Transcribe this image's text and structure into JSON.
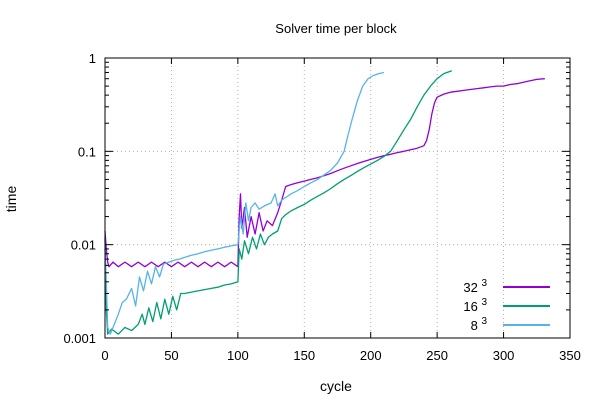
{
  "chart_data": {
    "type": "line",
    "title": "Solver time per block",
    "xlabel": "cycle",
    "ylabel": "time",
    "xlim": [
      0,
      350
    ],
    "ylim": [
      0.001,
      1
    ],
    "yscale": "log",
    "x_ticks": [
      0,
      50,
      100,
      150,
      200,
      250,
      300,
      350
    ],
    "y_ticks": [
      {
        "value": 0.001,
        "label": "0.001"
      },
      {
        "value": 0.01,
        "label": "0.01"
      },
      {
        "value": 0.1,
        "label": "0.1"
      },
      {
        "value": 1,
        "label": "1"
      }
    ],
    "grid": true,
    "legend_position": "bottom-right",
    "series": [
      {
        "name": "32",
        "name_sup": "3",
        "color": "#9400d3",
        "points": [
          [
            0,
            0.014
          ],
          [
            1,
            0.009
          ],
          [
            2,
            0.0065
          ],
          [
            3,
            0.0058
          ],
          [
            6,
            0.0065
          ],
          [
            10,
            0.0058
          ],
          [
            15,
            0.0065
          ],
          [
            20,
            0.0058
          ],
          [
            25,
            0.0065
          ],
          [
            30,
            0.0058
          ],
          [
            35,
            0.0065
          ],
          [
            40,
            0.0058
          ],
          [
            45,
            0.0065
          ],
          [
            50,
            0.0058
          ],
          [
            55,
            0.0065
          ],
          [
            60,
            0.0058
          ],
          [
            65,
            0.0065
          ],
          [
            70,
            0.0058
          ],
          [
            75,
            0.0065
          ],
          [
            80,
            0.0058
          ],
          [
            85,
            0.0065
          ],
          [
            90,
            0.0058
          ],
          [
            95,
            0.0065
          ],
          [
            100,
            0.0058
          ],
          [
            101,
            0.02
          ],
          [
            102,
            0.035
          ],
          [
            103,
            0.015
          ],
          [
            105,
            0.025
          ],
          [
            107,
            0.012
          ],
          [
            110,
            0.02
          ],
          [
            113,
            0.013
          ],
          [
            116,
            0.022
          ],
          [
            119,
            0.014
          ],
          [
            122,
            0.018
          ],
          [
            126,
            0.016
          ],
          [
            130,
            0.022
          ],
          [
            133,
            0.03
          ],
          [
            136,
            0.042
          ],
          [
            140,
            0.044
          ],
          [
            145,
            0.046
          ],
          [
            150,
            0.048
          ],
          [
            155,
            0.05
          ],
          [
            160,
            0.052
          ],
          [
            165,
            0.055
          ],
          [
            170,
            0.058
          ],
          [
            175,
            0.062
          ],
          [
            180,
            0.066
          ],
          [
            185,
            0.07
          ],
          [
            190,
            0.074
          ],
          [
            195,
            0.078
          ],
          [
            200,
            0.082
          ],
          [
            205,
            0.086
          ],
          [
            210,
            0.09
          ],
          [
            215,
            0.093
          ],
          [
            220,
            0.097
          ],
          [
            225,
            0.1
          ],
          [
            230,
            0.104
          ],
          [
            235,
            0.108
          ],
          [
            240,
            0.115
          ],
          [
            242,
            0.13
          ],
          [
            244,
            0.17
          ],
          [
            246,
            0.25
          ],
          [
            248,
            0.33
          ],
          [
            250,
            0.38
          ],
          [
            255,
            0.41
          ],
          [
            260,
            0.43
          ],
          [
            265,
            0.44
          ],
          [
            270,
            0.45
          ],
          [
            275,
            0.46
          ],
          [
            280,
            0.47
          ],
          [
            285,
            0.48
          ],
          [
            290,
            0.49
          ],
          [
            295,
            0.5
          ],
          [
            300,
            0.5
          ],
          [
            305,
            0.52
          ],
          [
            310,
            0.53
          ],
          [
            315,
            0.55
          ],
          [
            320,
            0.57
          ],
          [
            325,
            0.59
          ],
          [
            331,
            0.6
          ]
        ]
      },
      {
        "name": "16",
        "name_sup": "3",
        "color": "#009e73",
        "points": [
          [
            0,
            0.012
          ],
          [
            1,
            0.002
          ],
          [
            2,
            0.0011
          ],
          [
            5,
            0.00125
          ],
          [
            10,
            0.0011
          ],
          [
            15,
            0.0013
          ],
          [
            20,
            0.0012
          ],
          [
            25,
            0.0014
          ],
          [
            28,
            0.0018
          ],
          [
            30,
            0.0014
          ],
          [
            33,
            0.0021
          ],
          [
            36,
            0.0015
          ],
          [
            39,
            0.0024
          ],
          [
            42,
            0.0016
          ],
          [
            45,
            0.0026
          ],
          [
            48,
            0.0018
          ],
          [
            51,
            0.0028
          ],
          [
            54,
            0.002
          ],
          [
            57,
            0.003
          ],
          [
            60,
            0.003
          ],
          [
            65,
            0.0031
          ],
          [
            70,
            0.0032
          ],
          [
            75,
            0.0033
          ],
          [
            80,
            0.0034
          ],
          [
            85,
            0.0035
          ],
          [
            90,
            0.0037
          ],
          [
            95,
            0.0038
          ],
          [
            100,
            0.004
          ],
          [
            101,
            0.009
          ],
          [
            103,
            0.007
          ],
          [
            105,
            0.011
          ],
          [
            108,
            0.008
          ],
          [
            111,
            0.012
          ],
          [
            114,
            0.009
          ],
          [
            117,
            0.013
          ],
          [
            120,
            0.01
          ],
          [
            123,
            0.012
          ],
          [
            126,
            0.013
          ],
          [
            130,
            0.014
          ],
          [
            133,
            0.019
          ],
          [
            136,
            0.021
          ],
          [
            140,
            0.023
          ],
          [
            145,
            0.025
          ],
          [
            150,
            0.027
          ],
          [
            155,
            0.03
          ],
          [
            160,
            0.033
          ],
          [
            165,
            0.036
          ],
          [
            170,
            0.04
          ],
          [
            175,
            0.045
          ],
          [
            180,
            0.05
          ],
          [
            185,
            0.055
          ],
          [
            190,
            0.061
          ],
          [
            195,
            0.067
          ],
          [
            200,
            0.073
          ],
          [
            205,
            0.08
          ],
          [
            210,
            0.088
          ],
          [
            215,
            0.1
          ],
          [
            220,
            0.13
          ],
          [
            225,
            0.17
          ],
          [
            230,
            0.22
          ],
          [
            235,
            0.3
          ],
          [
            240,
            0.4
          ],
          [
            245,
            0.5
          ],
          [
            250,
            0.6
          ],
          [
            255,
            0.68
          ],
          [
            261,
            0.73
          ]
        ]
      },
      {
        "name": "8",
        "name_sup": "3",
        "color": "#56b4e9",
        "points": [
          [
            0,
            0.009
          ],
          [
            1,
            0.004
          ],
          [
            2,
            0.0013
          ],
          [
            4,
            0.0011
          ],
          [
            7,
            0.0014
          ],
          [
            10,
            0.0018
          ],
          [
            13,
            0.0024
          ],
          [
            16,
            0.0026
          ],
          [
            20,
            0.0034
          ],
          [
            23,
            0.0022
          ],
          [
            26,
            0.0045
          ],
          [
            29,
            0.0032
          ],
          [
            32,
            0.0052
          ],
          [
            35,
            0.0038
          ],
          [
            38,
            0.0058
          ],
          [
            41,
            0.0045
          ],
          [
            44,
            0.0062
          ],
          [
            48,
            0.0065
          ],
          [
            52,
            0.0068
          ],
          [
            56,
            0.007
          ],
          [
            60,
            0.0073
          ],
          [
            65,
            0.0077
          ],
          [
            70,
            0.008
          ],
          [
            75,
            0.0084
          ],
          [
            80,
            0.0087
          ],
          [
            85,
            0.009
          ],
          [
            90,
            0.0094
          ],
          [
            95,
            0.0097
          ],
          [
            100,
            0.01
          ],
          [
            102,
            0.02
          ],
          [
            104,
            0.013
          ],
          [
            106,
            0.028
          ],
          [
            108,
            0.018
          ],
          [
            110,
            0.025
          ],
          [
            113,
            0.028
          ],
          [
            116,
            0.024
          ],
          [
            120,
            0.026
          ],
          [
            125,
            0.028
          ],
          [
            128,
            0.035
          ],
          [
            130,
            0.026
          ],
          [
            133,
            0.03
          ],
          [
            136,
            0.032
          ],
          [
            140,
            0.035
          ],
          [
            145,
            0.038
          ],
          [
            150,
            0.042
          ],
          [
            155,
            0.046
          ],
          [
            160,
            0.05
          ],
          [
            165,
            0.056
          ],
          [
            170,
            0.063
          ],
          [
            175,
            0.075
          ],
          [
            180,
            0.1
          ],
          [
            183,
            0.15
          ],
          [
            186,
            0.22
          ],
          [
            190,
            0.35
          ],
          [
            194,
            0.5
          ],
          [
            198,
            0.6
          ],
          [
            202,
            0.65
          ],
          [
            206,
            0.68
          ],
          [
            210,
            0.7
          ]
        ]
      }
    ]
  }
}
